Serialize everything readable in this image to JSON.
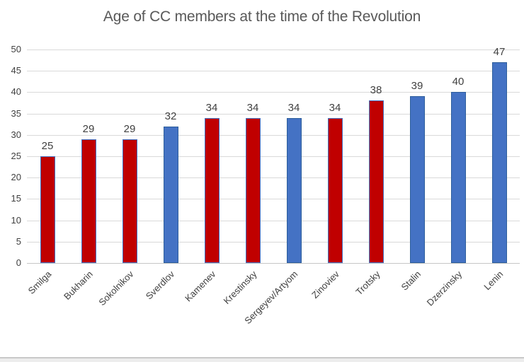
{
  "chart_data": {
    "type": "bar",
    "title": "Age of CC members at the time of the Revolution",
    "categories": [
      "Smilga",
      "Bukharin",
      "Sokolnikov",
      "Sverdlov",
      "Kamenev",
      "Krestinsky",
      "Sergeyev/Artyom",
      "Zinoviev",
      "Trotsky",
      "Stalin",
      "Dzerzinsky",
      "Lenin"
    ],
    "values": [
      25,
      29,
      29,
      32,
      34,
      34,
      34,
      34,
      38,
      39,
      40,
      47
    ],
    "bar_color_keys": [
      "red",
      "red",
      "red",
      "blue",
      "red",
      "red",
      "blue",
      "red",
      "red",
      "blue",
      "blue",
      "blue"
    ],
    "data_labels": [
      "25",
      "29",
      "29",
      "32",
      "34",
      "34",
      "34",
      "34",
      "38",
      "39",
      "40",
      "47"
    ],
    "yticks": [
      "0",
      "5",
      "10",
      "15",
      "20",
      "25",
      "30",
      "35",
      "40",
      "45",
      "50"
    ],
    "ylim": [
      0,
      50
    ],
    "xlabel": "",
    "ylabel": "",
    "grid": true,
    "legend_position": "none",
    "colors": {
      "red_fill": "#C00000",
      "red_border": "#4472C4",
      "blue_fill": "#4472C4",
      "blue_border": "#2E5F9C",
      "gridline": "#D9D9D9",
      "axis_line": "#C6C6C6",
      "title_text": "#595959",
      "label_text": "#404040"
    }
  }
}
